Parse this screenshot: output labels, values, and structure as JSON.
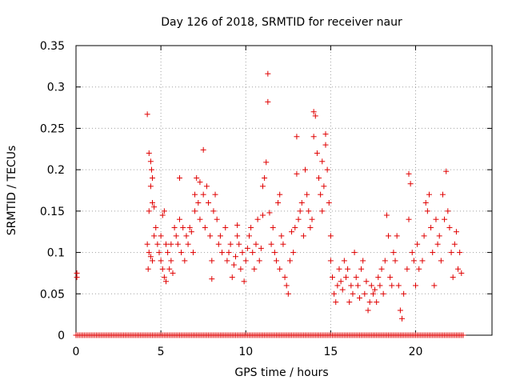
{
  "chart_data": {
    "type": "scatter",
    "title": "Day 126 of 2018, SRMTID for receiver naur",
    "xlabel": "GPS time / hours",
    "ylabel": "SRMTID / TECUs",
    "xlim": [
      0,
      24.5
    ],
    "ylim": [
      0,
      0.35
    ],
    "xticks": [
      0,
      5,
      10,
      15,
      20
    ],
    "xtick_labels": [
      "0",
      "5",
      "10",
      "15",
      "20"
    ],
    "yticks": [
      0,
      0.05,
      0.1,
      0.15,
      0.2,
      0.25,
      0.3,
      0.35
    ],
    "ytick_labels": [
      "0",
      "0.05",
      "0.1",
      "0.15",
      "0.2",
      "0.25",
      "0.3",
      "0.35"
    ],
    "grid": true,
    "marker": "plus",
    "color": "#e00000",
    "series": [
      {
        "name": "SRMTID",
        "points": [
          [
            0.05,
            0.07
          ],
          [
            0.05,
            0.075
          ],
          [
            4.2,
            0.267
          ],
          [
            4.3,
            0.22
          ],
          [
            4.4,
            0.21
          ],
          [
            4.45,
            0.2
          ],
          [
            4.5,
            0.19
          ],
          [
            4.4,
            0.18
          ],
          [
            4.5,
            0.16
          ],
          [
            4.3,
            0.15
          ],
          [
            4.6,
            0.155
          ],
          [
            4.2,
            0.11
          ],
          [
            4.3,
            0.1
          ],
          [
            4.4,
            0.095
          ],
          [
            4.25,
            0.08
          ],
          [
            4.5,
            0.09
          ],
          [
            4.6,
            0.12
          ],
          [
            4.7,
            0.13
          ],
          [
            4.8,
            0.11
          ],
          [
            4.9,
            0.1
          ],
          [
            5.0,
            0.12
          ],
          [
            5.0,
            0.09
          ],
          [
            5.1,
            0.08
          ],
          [
            5.2,
            0.07
          ],
          [
            5.1,
            0.145
          ],
          [
            5.2,
            0.15
          ],
          [
            5.3,
            0.11
          ],
          [
            5.3,
            0.065
          ],
          [
            5.4,
            0.1
          ],
          [
            5.5,
            0.08
          ],
          [
            5.6,
            0.09
          ],
          [
            5.6,
            0.11
          ],
          [
            5.7,
            0.075
          ],
          [
            5.8,
            0.13
          ],
          [
            5.9,
            0.12
          ],
          [
            6.0,
            0.11
          ],
          [
            6.1,
            0.19
          ],
          [
            6.1,
            0.14
          ],
          [
            6.2,
            0.1
          ],
          [
            6.3,
            0.13
          ],
          [
            6.4,
            0.09
          ],
          [
            6.5,
            0.12
          ],
          [
            6.6,
            0.11
          ],
          [
            6.7,
            0.13
          ],
          [
            6.8,
            0.125
          ],
          [
            6.9,
            0.1
          ],
          [
            7.0,
            0.15
          ],
          [
            7.0,
            0.17
          ],
          [
            7.1,
            0.19
          ],
          [
            7.2,
            0.16
          ],
          [
            7.3,
            0.14
          ],
          [
            7.3,
            0.185
          ],
          [
            7.5,
            0.224
          ],
          [
            7.5,
            0.17
          ],
          [
            7.6,
            0.13
          ],
          [
            7.7,
            0.18
          ],
          [
            7.8,
            0.16
          ],
          [
            7.9,
            0.12
          ],
          [
            8.0,
            0.09
          ],
          [
            8.0,
            0.068
          ],
          [
            8.1,
            0.15
          ],
          [
            8.2,
            0.17
          ],
          [
            8.3,
            0.14
          ],
          [
            8.4,
            0.11
          ],
          [
            8.5,
            0.12
          ],
          [
            8.6,
            0.1
          ],
          [
            8.8,
            0.13
          ],
          [
            8.9,
            0.09
          ],
          [
            9.0,
            0.1
          ],
          [
            9.1,
            0.11
          ],
          [
            9.2,
            0.07
          ],
          [
            9.3,
            0.085
          ],
          [
            9.4,
            0.095
          ],
          [
            9.5,
            0.12
          ],
          [
            9.5,
            0.133
          ],
          [
            9.6,
            0.11
          ],
          [
            9.7,
            0.08
          ],
          [
            9.8,
            0.1
          ],
          [
            9.9,
            0.065
          ],
          [
            10.0,
            0.09
          ],
          [
            10.1,
            0.105
          ],
          [
            10.2,
            0.12
          ],
          [
            10.3,
            0.13
          ],
          [
            10.4,
            0.1
          ],
          [
            10.5,
            0.08
          ],
          [
            10.6,
            0.11
          ],
          [
            10.7,
            0.14
          ],
          [
            10.8,
            0.09
          ],
          [
            10.9,
            0.105
          ],
          [
            11.0,
            0.145
          ],
          [
            11.0,
            0.18
          ],
          [
            11.1,
            0.19
          ],
          [
            11.2,
            0.209
          ],
          [
            11.3,
            0.282
          ],
          [
            11.3,
            0.316
          ],
          [
            11.4,
            0.148
          ],
          [
            11.5,
            0.11
          ],
          [
            11.6,
            0.13
          ],
          [
            11.7,
            0.1
          ],
          [
            11.8,
            0.09
          ],
          [
            11.9,
            0.16
          ],
          [
            12.0,
            0.17
          ],
          [
            12.0,
            0.08
          ],
          [
            12.1,
            0.12
          ],
          [
            12.2,
            0.11
          ],
          [
            12.3,
            0.07
          ],
          [
            12.4,
            0.06
          ],
          [
            12.5,
            0.05
          ],
          [
            12.6,
            0.09
          ],
          [
            12.7,
            0.125
          ],
          [
            12.8,
            0.1
          ],
          [
            12.9,
            0.13
          ],
          [
            13.0,
            0.24
          ],
          [
            13.0,
            0.195
          ],
          [
            13.1,
            0.14
          ],
          [
            13.2,
            0.15
          ],
          [
            13.3,
            0.16
          ],
          [
            13.4,
            0.12
          ],
          [
            13.5,
            0.2
          ],
          [
            13.6,
            0.17
          ],
          [
            13.7,
            0.15
          ],
          [
            13.8,
            0.13
          ],
          [
            13.9,
            0.14
          ],
          [
            14.0,
            0.24
          ],
          [
            14.0,
            0.27
          ],
          [
            14.1,
            0.265
          ],
          [
            14.2,
            0.22
          ],
          [
            14.3,
            0.19
          ],
          [
            14.4,
            0.17
          ],
          [
            14.5,
            0.21
          ],
          [
            14.5,
            0.15
          ],
          [
            14.6,
            0.18
          ],
          [
            14.7,
            0.23
          ],
          [
            14.7,
            0.243
          ],
          [
            14.8,
            0.2
          ],
          [
            14.9,
            0.16
          ],
          [
            15.0,
            0.12
          ],
          [
            15.0,
            0.09
          ],
          [
            15.1,
            0.07
          ],
          [
            15.2,
            0.05
          ],
          [
            15.3,
            0.04
          ],
          [
            15.4,
            0.06
          ],
          [
            15.5,
            0.08
          ],
          [
            15.6,
            0.065
          ],
          [
            15.7,
            0.055
          ],
          [
            15.8,
            0.09
          ],
          [
            15.9,
            0.07
          ],
          [
            16.0,
            0.08
          ],
          [
            16.1,
            0.04
          ],
          [
            16.2,
            0.06
          ],
          [
            16.3,
            0.05
          ],
          [
            16.4,
            0.1
          ],
          [
            16.5,
            0.07
          ],
          [
            16.6,
            0.06
          ],
          [
            16.7,
            0.045
          ],
          [
            16.8,
            0.08
          ],
          [
            16.9,
            0.09
          ],
          [
            17.0,
            0.05
          ],
          [
            17.1,
            0.065
          ],
          [
            17.2,
            0.03
          ],
          [
            17.3,
            0.04
          ],
          [
            17.4,
            0.06
          ],
          [
            17.5,
            0.05
          ],
          [
            17.6,
            0.055
          ],
          [
            17.7,
            0.04
          ],
          [
            17.8,
            0.07
          ],
          [
            17.9,
            0.06
          ],
          [
            18.0,
            0.08
          ],
          [
            18.1,
            0.05
          ],
          [
            18.2,
            0.09
          ],
          [
            18.3,
            0.145
          ],
          [
            18.4,
            0.12
          ],
          [
            18.5,
            0.07
          ],
          [
            18.6,
            0.06
          ],
          [
            18.7,
            0.1
          ],
          [
            18.8,
            0.09
          ],
          [
            18.9,
            0.12
          ],
          [
            19.0,
            0.06
          ],
          [
            19.1,
            0.03
          ],
          [
            19.2,
            0.02
          ],
          [
            19.3,
            0.05
          ],
          [
            19.5,
            0.08
          ],
          [
            19.6,
            0.14
          ],
          [
            19.6,
            0.195
          ],
          [
            19.7,
            0.183
          ],
          [
            19.8,
            0.1
          ],
          [
            19.9,
            0.09
          ],
          [
            20.0,
            0.06
          ],
          [
            20.1,
            0.11
          ],
          [
            20.2,
            0.08
          ],
          [
            20.4,
            0.09
          ],
          [
            20.5,
            0.12
          ],
          [
            20.6,
            0.16
          ],
          [
            20.7,
            0.15
          ],
          [
            20.8,
            0.17
          ],
          [
            20.9,
            0.13
          ],
          [
            21.0,
            0.1
          ],
          [
            21.1,
            0.06
          ],
          [
            21.2,
            0.14
          ],
          [
            21.3,
            0.11
          ],
          [
            21.4,
            0.12
          ],
          [
            21.5,
            0.09
          ],
          [
            21.6,
            0.17
          ],
          [
            21.7,
            0.14
          ],
          [
            21.8,
            0.198
          ],
          [
            21.9,
            0.15
          ],
          [
            22.0,
            0.13
          ],
          [
            22.1,
            0.1
          ],
          [
            22.2,
            0.07
          ],
          [
            22.3,
            0.11
          ],
          [
            22.4,
            0.125
          ],
          [
            22.5,
            0.08
          ],
          [
            22.6,
            0.1
          ],
          [
            22.7,
            0.075
          ]
        ]
      },
      {
        "name": "zero-level",
        "x_range": [
          0,
          22.8
        ],
        "x_step": 0.1,
        "y": 0
      }
    ]
  }
}
